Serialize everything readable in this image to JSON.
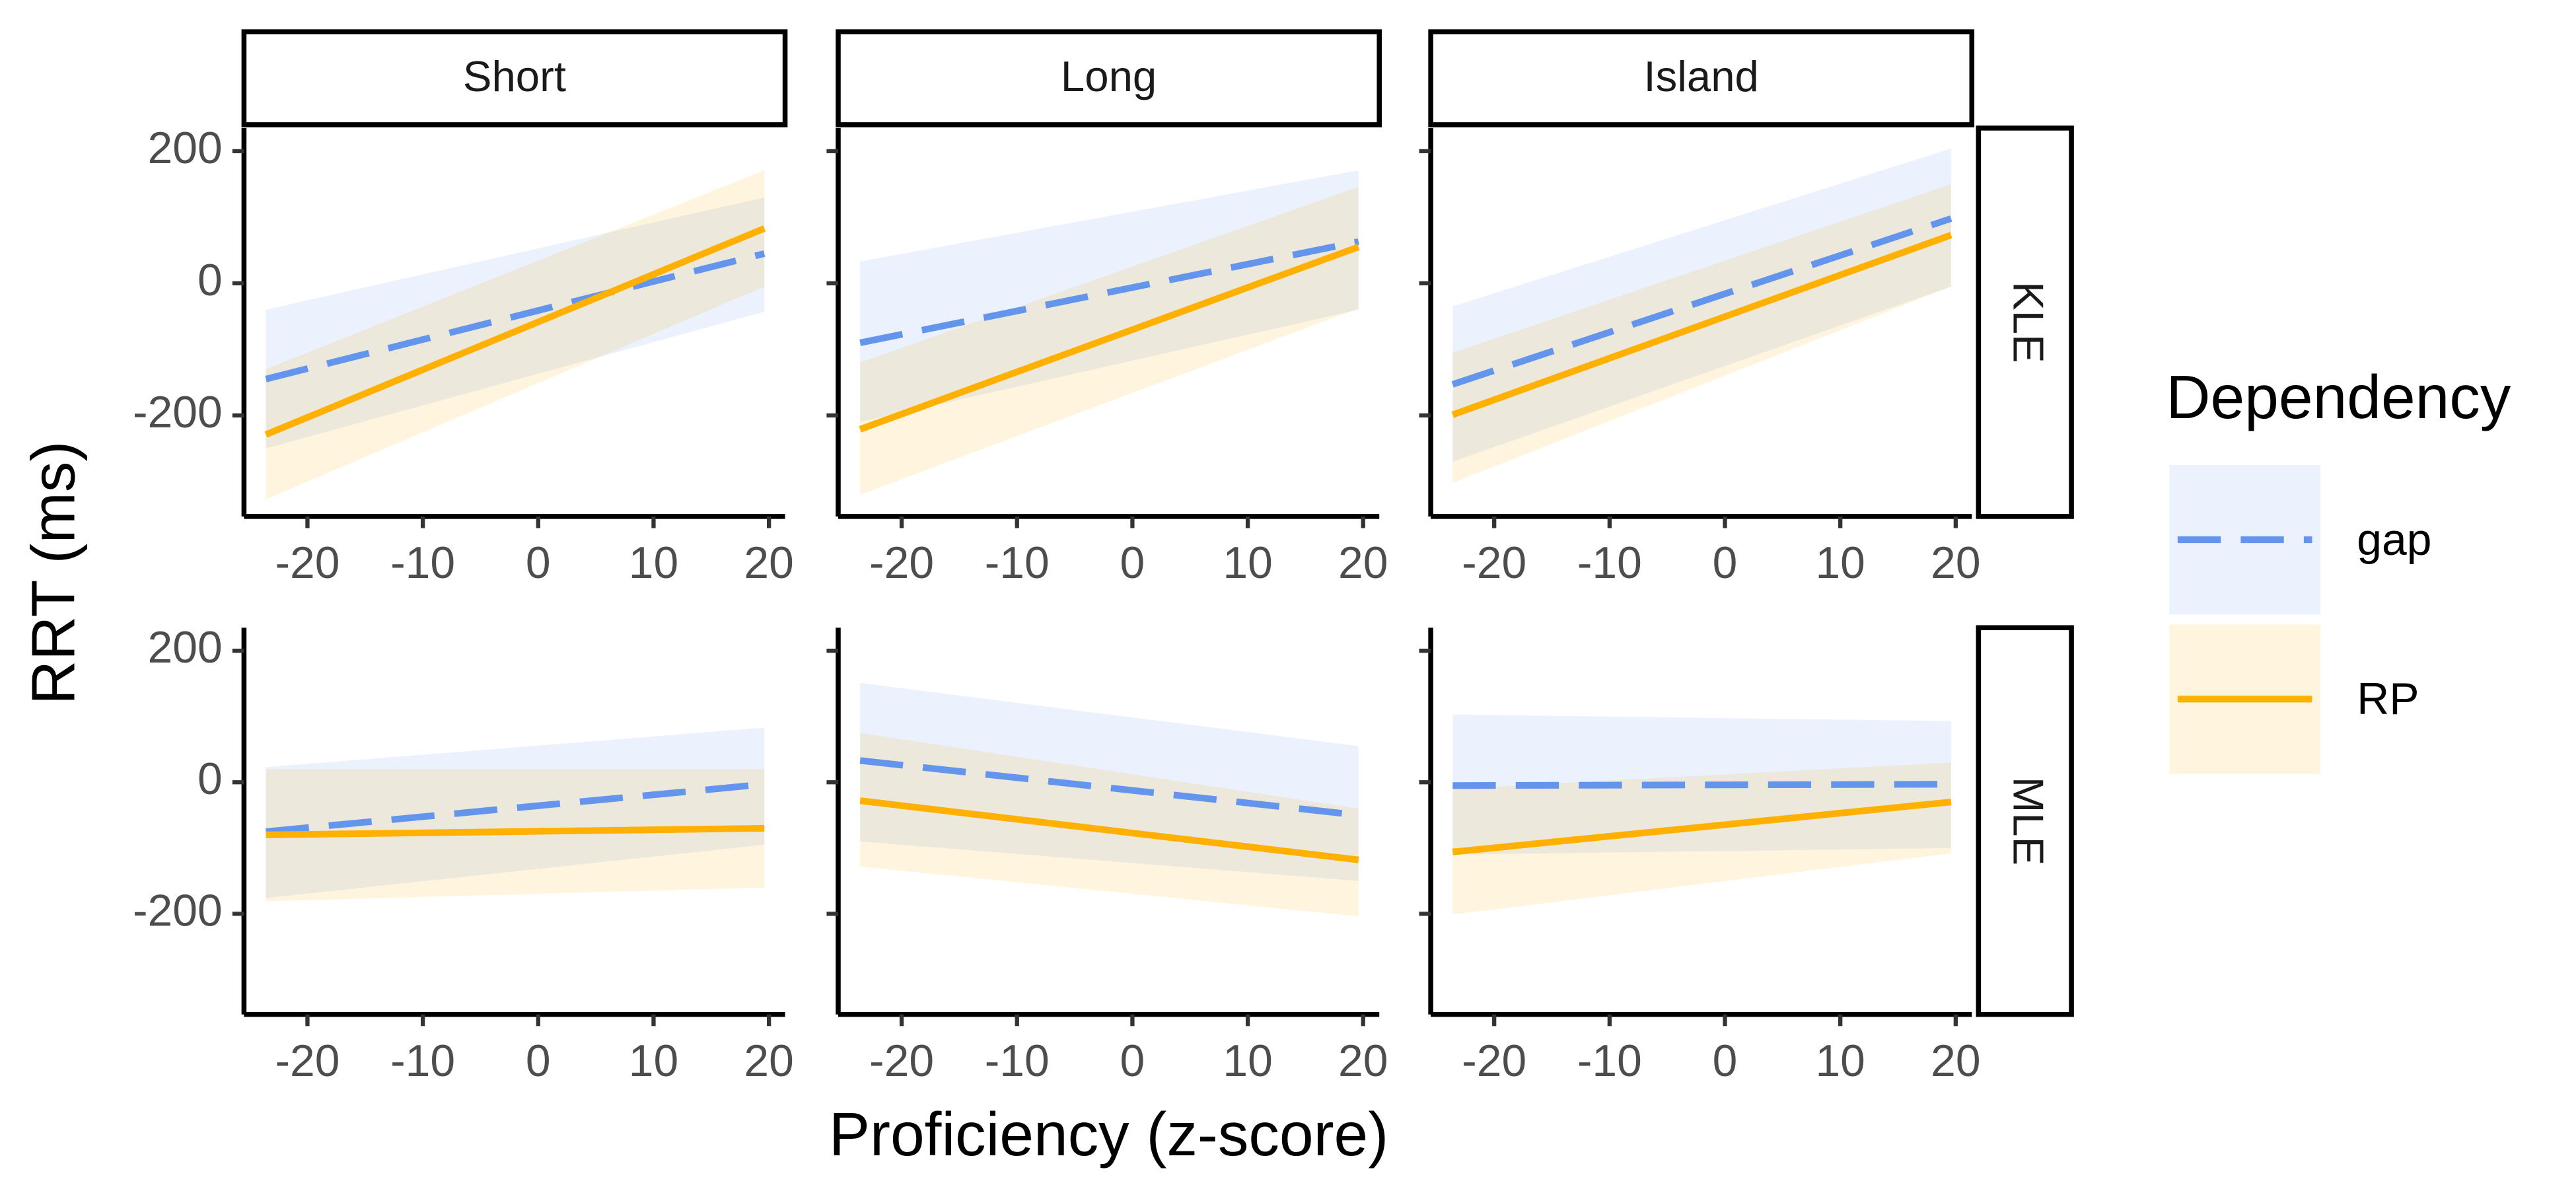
{
  "chart_data": {
    "type": "line",
    "xlabel": "Proficiency (z-score)",
    "ylabel": "RRT (ms)",
    "legend_title": "Dependency",
    "col_labels": [
      "Short",
      "Long",
      "Island"
    ],
    "row_labels": [
      "KLE",
      "MLE"
    ],
    "x": [
      -23.6,
      19.6
    ],
    "xlim": [
      -25.5,
      21.4
    ],
    "xticks": [
      -20,
      -10,
      0,
      10,
      20
    ],
    "ylim": [
      -353,
      235
    ],
    "yticks": [
      -200,
      0,
      200
    ],
    "series": [
      {
        "name": "gap",
        "color": "#6495ed",
        "dashed": true
      },
      {
        "name": "RP",
        "color": "#ffb000",
        "dashed": false
      }
    ],
    "panels": [
      [
        {
          "series": [
            {
              "values": [
                -145,
                45
              ],
              "lower": [
                -250,
                -43
              ],
              "upper": [
                -40,
                130
              ]
            },
            {
              "values": [
                -229,
                83
              ],
              "lower": [
                -327,
                -5
              ],
              "upper": [
                -130,
                171
              ]
            }
          ]
        },
        {
          "series": [
            {
              "values": [
                -90,
                63
              ],
              "lower": [
                -210,
                -40
              ],
              "upper": [
                33,
                171
              ]
            },
            {
              "values": [
                -221,
                55
              ],
              "lower": [
                -320,
                -38
              ],
              "upper": [
                -120,
                146
              ]
            }
          ]
        },
        {
          "series": [
            {
              "values": [
                -153,
                98
              ],
              "lower": [
                -270,
                -5
              ],
              "upper": [
                -35,
                204
              ]
            },
            {
              "values": [
                -199,
                73
              ],
              "lower": [
                -302,
                -5
              ],
              "upper": [
                -105,
                150
              ]
            }
          ]
        }
      ],
      [
        {
          "series": [
            {
              "values": [
                -75,
                -3
              ],
              "lower": [
                -176,
                -95
              ],
              "upper": [
                23,
                83
              ]
            },
            {
              "values": [
                -80,
                -70
              ],
              "lower": [
                -181,
                -160
              ],
              "upper": [
                20,
                20
              ]
            }
          ]
        },
        {
          "series": [
            {
              "values": [
                33,
                -50
              ],
              "lower": [
                -90,
                -150
              ],
              "upper": [
                151,
                55
              ]
            },
            {
              "values": [
                -28,
                -118
              ],
              "lower": [
                -128,
                -204
              ],
              "upper": [
                75,
                -40
              ]
            }
          ]
        },
        {
          "series": [
            {
              "values": [
                -5,
                -3
              ],
              "lower": [
                -110,
                -100
              ],
              "upper": [
                103,
                93
              ]
            },
            {
              "values": [
                -106,
                -30
              ],
              "lower": [
                -201,
                -108
              ],
              "upper": [
                -10,
                30
              ]
            }
          ]
        }
      ]
    ]
  }
}
